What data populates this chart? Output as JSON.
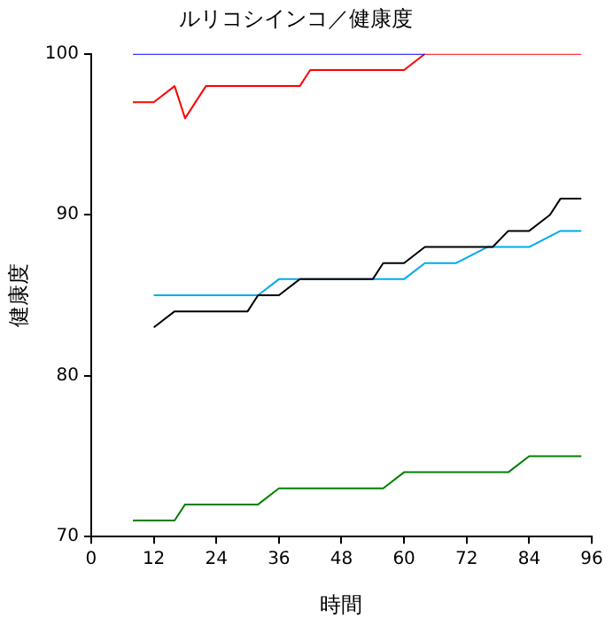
{
  "chart_data": {
    "type": "line",
    "title": "ルリコシインコ／健康度",
    "xlabel": "時間",
    "ylabel": "健康度",
    "xlim": [
      0,
      96
    ],
    "xticks": [
      0,
      12,
      24,
      36,
      48,
      60,
      72,
      84,
      96
    ],
    "ylim": [
      70,
      100
    ],
    "yticks": [
      70,
      80,
      90,
      100
    ],
    "grid": false,
    "legend": false,
    "marker": "none",
    "line_style": "solid",
    "series": [
      {
        "color": "#0000ff",
        "x": [
          8,
          64
        ],
        "values": [
          100,
          100
        ]
      },
      {
        "color": "#ff0000",
        "x": [
          8,
          12,
          16,
          18,
          22,
          40,
          42,
          60,
          64,
          94
        ],
        "values": [
          97,
          97,
          98,
          96,
          98,
          98,
          99,
          99,
          100,
          100
        ]
      },
      {
        "color": "#000000",
        "x": [
          12,
          16,
          30,
          32,
          36,
          40,
          54,
          56,
          60,
          64,
          77,
          80,
          84,
          88,
          90,
          94
        ],
        "values": [
          83,
          84,
          84,
          85,
          85,
          86,
          86,
          87,
          87,
          88,
          88,
          89,
          89,
          90,
          91,
          91
        ]
      },
      {
        "color": "#00aaee",
        "x": [
          12,
          32,
          36,
          60,
          64,
          70,
          76,
          84,
          90,
          94
        ],
        "values": [
          85,
          85,
          86,
          86,
          87,
          87,
          88,
          88,
          89,
          89
        ]
      },
      {
        "color": "#008000",
        "x": [
          8,
          16,
          18,
          32,
          36,
          56,
          60,
          80,
          84,
          94
        ],
        "values": [
          71,
          71,
          72,
          72,
          73,
          73,
          74,
          74,
          75,
          75
        ]
      }
    ]
  }
}
